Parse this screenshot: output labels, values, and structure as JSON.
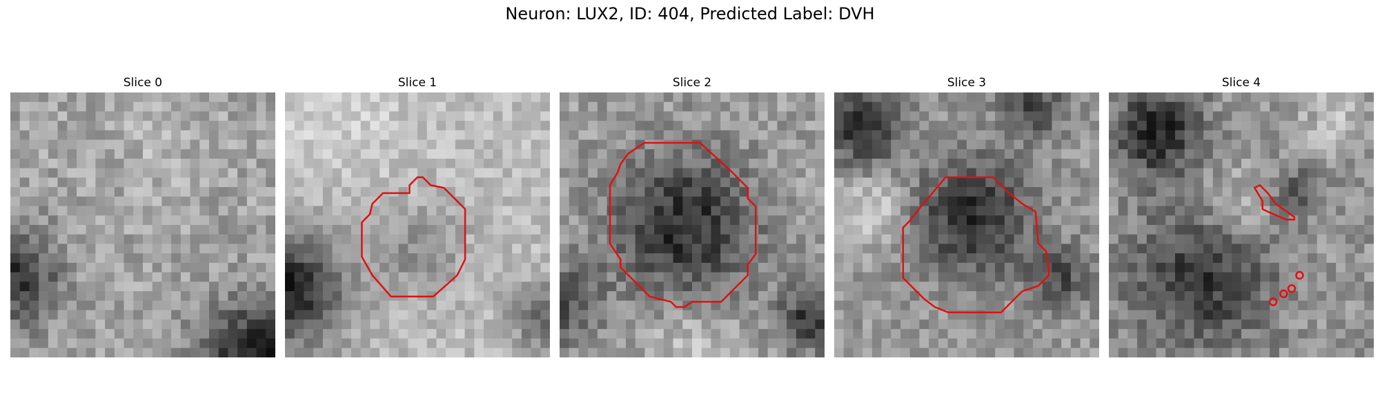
{
  "figure": {
    "title": "Neuron: LUX2, ID: 404, Predicted Label: DVH",
    "outline_color": "#e01010"
  },
  "panels": [
    {
      "title": "Slice 0",
      "texture": {
        "base": 0.64,
        "seed": 11,
        "noise": 0.13,
        "blobs": [
          [
            0.0,
            0.7,
            0.18,
            -0.45
          ],
          [
            0.95,
            1.0,
            0.22,
            -0.55
          ],
          [
            0.55,
            0.2,
            0.2,
            0.06
          ]
        ]
      },
      "outlines": []
    },
    {
      "title": "Slice 1",
      "texture": {
        "base": 0.74,
        "seed": 23,
        "noise": 0.1,
        "blobs": [
          [
            0.0,
            0.75,
            0.22,
            -0.62
          ],
          [
            0.5,
            0.6,
            0.18,
            -0.18
          ],
          [
            1.0,
            0.85,
            0.14,
            -0.35
          ],
          [
            0.2,
            0.1,
            0.25,
            0.08
          ]
        ]
      },
      "outlines": [
        {
          "kind": "poly",
          "points": [
            [
              0.47,
              0.35
            ],
            [
              0.5,
              0.32
            ],
            [
              0.52,
              0.32
            ],
            [
              0.55,
              0.35
            ],
            [
              0.6,
              0.36
            ],
            [
              0.68,
              0.44
            ],
            [
              0.68,
              0.63
            ],
            [
              0.65,
              0.69
            ],
            [
              0.56,
              0.77
            ],
            [
              0.4,
              0.77
            ],
            [
              0.33,
              0.69
            ],
            [
              0.29,
              0.62
            ],
            [
              0.29,
              0.49
            ],
            [
              0.32,
              0.46
            ],
            [
              0.33,
              0.42
            ],
            [
              0.37,
              0.38
            ],
            [
              0.47,
              0.38
            ]
          ]
        }
      ]
    },
    {
      "title": "Slice 2",
      "texture": {
        "base": 0.62,
        "seed": 37,
        "noise": 0.13,
        "blobs": [
          [
            0.47,
            0.5,
            0.27,
            -0.45
          ],
          [
            0.0,
            0.8,
            0.15,
            -0.32
          ],
          [
            0.95,
            0.85,
            0.12,
            -0.4
          ],
          [
            0.5,
            0.96,
            0.15,
            0.16
          ]
        ]
      },
      "outlines": [
        {
          "kind": "poly",
          "points": [
            [
              0.26,
              0.23
            ],
            [
              0.32,
              0.19
            ],
            [
              0.53,
              0.19
            ],
            [
              0.64,
              0.29
            ],
            [
              0.71,
              0.36
            ],
            [
              0.71,
              0.4
            ],
            [
              0.74,
              0.43
            ],
            [
              0.74,
              0.61
            ],
            [
              0.71,
              0.65
            ],
            [
              0.71,
              0.69
            ],
            [
              0.61,
              0.79
            ],
            [
              0.5,
              0.79
            ],
            [
              0.47,
              0.81
            ],
            [
              0.44,
              0.81
            ],
            [
              0.42,
              0.79
            ],
            [
              0.34,
              0.77
            ],
            [
              0.23,
              0.66
            ],
            [
              0.23,
              0.63
            ],
            [
              0.19,
              0.57
            ],
            [
              0.19,
              0.35
            ],
            [
              0.22,
              0.3
            ],
            [
              0.23,
              0.27
            ]
          ]
        }
      ]
    },
    {
      "title": "Slice 3",
      "texture": {
        "base": 0.6,
        "seed": 53,
        "noise": 0.12,
        "blobs": [
          [
            0.52,
            0.47,
            0.22,
            -0.42
          ],
          [
            0.1,
            0.13,
            0.14,
            -0.45
          ],
          [
            0.75,
            0.05,
            0.12,
            -0.32
          ],
          [
            0.15,
            0.45,
            0.13,
            0.22
          ],
          [
            0.85,
            0.7,
            0.12,
            -0.3
          ]
        ]
      },
      "outlines": [
        {
          "kind": "poly",
          "points": [
            [
              0.32,
              0.44
            ],
            [
              0.42,
              0.32
            ],
            [
              0.6,
              0.32
            ],
            [
              0.66,
              0.38
            ],
            [
              0.71,
              0.42
            ],
            [
              0.76,
              0.45
            ],
            [
              0.77,
              0.57
            ],
            [
              0.8,
              0.6
            ],
            [
              0.81,
              0.67
            ],
            [
              0.81,
              0.69
            ],
            [
              0.77,
              0.73
            ],
            [
              0.71,
              0.75
            ],
            [
              0.66,
              0.8
            ],
            [
              0.63,
              0.83
            ],
            [
              0.43,
              0.83
            ],
            [
              0.38,
              0.81
            ],
            [
              0.34,
              0.78
            ],
            [
              0.26,
              0.7
            ],
            [
              0.26,
              0.51
            ],
            [
              0.28,
              0.49
            ]
          ]
        }
      ]
    },
    {
      "title": "Slice 4",
      "texture": {
        "base": 0.58,
        "seed": 71,
        "noise": 0.13,
        "blobs": [
          [
            0.18,
            0.15,
            0.16,
            -0.45
          ],
          [
            0.35,
            0.7,
            0.25,
            -0.38
          ],
          [
            0.7,
            0.38,
            0.1,
            -0.25
          ],
          [
            0.5,
            0.42,
            0.16,
            0.16
          ],
          [
            0.85,
            0.1,
            0.14,
            0.15
          ]
        ]
      },
      "outlines": [
        {
          "kind": "poly",
          "points": [
            [
              0.55,
              0.36
            ],
            [
              0.57,
              0.35
            ],
            [
              0.6,
              0.38
            ],
            [
              0.63,
              0.42
            ],
            [
              0.7,
              0.47
            ],
            [
              0.7,
              0.48
            ],
            [
              0.67,
              0.48
            ],
            [
              0.6,
              0.45
            ],
            [
              0.58,
              0.44
            ],
            [
              0.58,
              0.41
            ]
          ]
        },
        {
          "kind": "dots",
          "points": [
            [
              0.62,
              0.79
            ],
            [
              0.66,
              0.76
            ],
            [
              0.69,
              0.74
            ],
            [
              0.72,
              0.69
            ]
          ]
        }
      ]
    }
  ]
}
